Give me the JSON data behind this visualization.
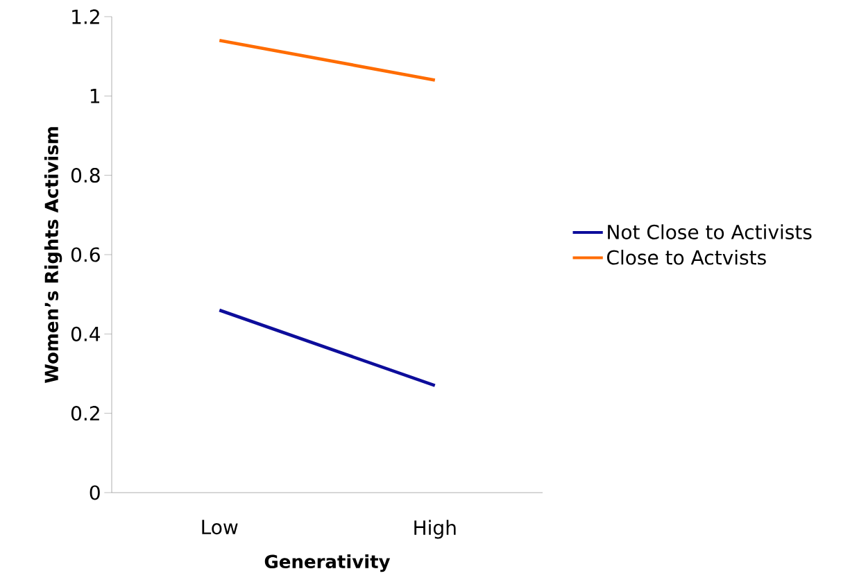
{
  "chart_data": {
    "type": "line",
    "xlabel": "Generativity",
    "ylabel": "Women’s Rights Activism",
    "categories": [
      "Low",
      "High"
    ],
    "series": [
      {
        "name": "Not Close to Activists",
        "color": "#0d0d9b",
        "values": [
          0.46,
          0.27
        ]
      },
      {
        "name": "Close to Actvists",
        "color": "#ff6c00",
        "values": [
          1.14,
          1.04
        ]
      }
    ],
    "ylim": [
      0,
      1.2
    ],
    "yticks": [
      0,
      0.2,
      0.4,
      0.6,
      0.8,
      1,
      1.2
    ],
    "legend": "right",
    "marker": "none",
    "grid": false
  }
}
